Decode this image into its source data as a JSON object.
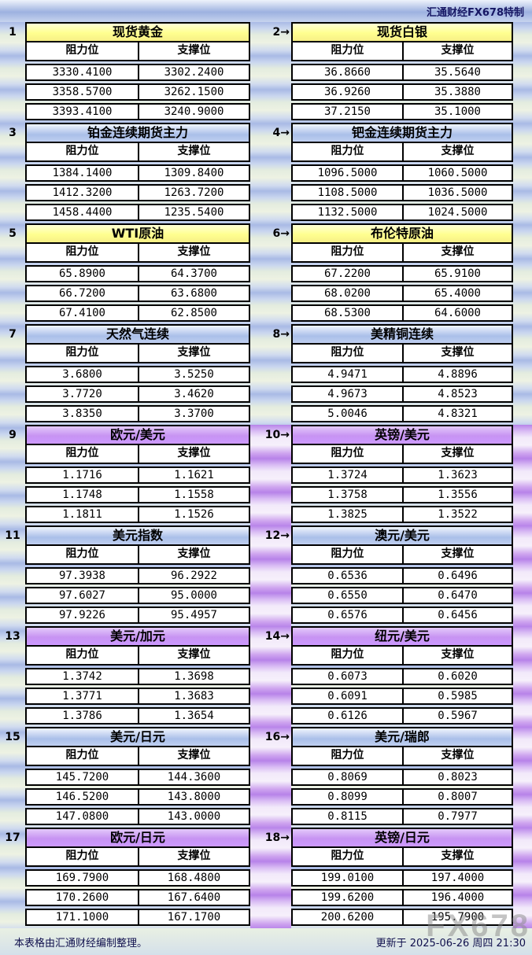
{
  "window": {
    "brand": "汇通财经FX678特制"
  },
  "columns": {
    "resistance": "阻力位",
    "support": "支撑位"
  },
  "pairs": [
    {
      "left": {
        "num": "1",
        "title": "现货黄金",
        "theme": "yellow",
        "rows": [
          [
            "3330.4100",
            "3302.2400"
          ],
          [
            "3358.5700",
            "3262.1500"
          ],
          [
            "3393.4100",
            "3240.9000"
          ]
        ]
      },
      "right": {
        "num": "2→",
        "title": "现货白银",
        "theme": "yellow",
        "rows": [
          [
            "36.8660",
            "35.5640"
          ],
          [
            "36.9260",
            "35.3880"
          ],
          [
            "37.2150",
            "35.1000"
          ]
        ]
      }
    },
    {
      "left": {
        "num": "3",
        "title": "铂金连续期货主力",
        "theme": "blue",
        "rows": [
          [
            "1384.1400",
            "1309.8400"
          ],
          [
            "1412.3200",
            "1263.7200"
          ],
          [
            "1458.4400",
            "1235.5400"
          ]
        ]
      },
      "right": {
        "num": "4→",
        "title": "钯金连续期货主力",
        "theme": "blue",
        "rows": [
          [
            "1096.5000",
            "1060.5000"
          ],
          [
            "1108.5000",
            "1036.5000"
          ],
          [
            "1132.5000",
            "1024.5000"
          ]
        ]
      }
    },
    {
      "left": {
        "num": "5",
        "title": "WTI原油",
        "theme": "yellow",
        "rows": [
          [
            "65.8900",
            "64.3700"
          ],
          [
            "66.7200",
            "63.6800"
          ],
          [
            "67.4100",
            "62.8500"
          ]
        ]
      },
      "right": {
        "num": "6→",
        "title": "布伦特原油",
        "theme": "yellow",
        "rows": [
          [
            "67.2200",
            "65.9100"
          ],
          [
            "68.0200",
            "65.4000"
          ],
          [
            "68.5300",
            "64.6000"
          ]
        ]
      }
    },
    {
      "left": {
        "num": "7",
        "title": "天然气连续",
        "theme": "blue",
        "rows": [
          [
            "3.6800",
            "3.5250"
          ],
          [
            "3.7720",
            "3.4620"
          ],
          [
            "3.8350",
            "3.3700"
          ]
        ]
      },
      "right": {
        "num": "8→",
        "title": "美精铜连续",
        "theme": "blue",
        "rows": [
          [
            "4.9471",
            "4.8896"
          ],
          [
            "4.9673",
            "4.8523"
          ],
          [
            "5.0046",
            "4.8321"
          ]
        ]
      }
    },
    {
      "left": {
        "num": "9",
        "title": "欧元/美元",
        "theme": "purple",
        "rows": [
          [
            "1.1716",
            "1.1621"
          ],
          [
            "1.1748",
            "1.1558"
          ],
          [
            "1.1811",
            "1.1526"
          ]
        ]
      },
      "right": {
        "num": "10→",
        "title": "英镑/美元",
        "theme": "purple",
        "rows": [
          [
            "1.3724",
            "1.3623"
          ],
          [
            "1.3758",
            "1.3556"
          ],
          [
            "1.3825",
            "1.3522"
          ]
        ]
      }
    },
    {
      "left": {
        "num": "11",
        "title": "美元指数",
        "theme": "blue",
        "rows": [
          [
            "97.3938",
            "96.2922"
          ],
          [
            "97.6027",
            "95.0000"
          ],
          [
            "97.9226",
            "95.4957"
          ]
        ]
      },
      "right": {
        "num": "12→",
        "title": "澳元/美元",
        "theme": "blue",
        "rows": [
          [
            "0.6536",
            "0.6496"
          ],
          [
            "0.6550",
            "0.6470"
          ],
          [
            "0.6576",
            "0.6456"
          ]
        ]
      }
    },
    {
      "left": {
        "num": "13",
        "title": "美元/加元",
        "theme": "purple",
        "rows": [
          [
            "1.3742",
            "1.3698"
          ],
          [
            "1.3771",
            "1.3683"
          ],
          [
            "1.3786",
            "1.3654"
          ]
        ]
      },
      "right": {
        "num": "14→",
        "title": "纽元/美元",
        "theme": "purple",
        "rows": [
          [
            "0.6073",
            "0.6020"
          ],
          [
            "0.6091",
            "0.5985"
          ],
          [
            "0.6126",
            "0.5967"
          ]
        ]
      }
    },
    {
      "left": {
        "num": "15",
        "title": "美元/日元",
        "theme": "blue",
        "rows": [
          [
            "145.7200",
            "144.3600"
          ],
          [
            "146.5200",
            "143.8000"
          ],
          [
            "147.0800",
            "143.0000"
          ]
        ]
      },
      "right": {
        "num": "16→",
        "title": "美元/瑞郎",
        "theme": "blue",
        "rows": [
          [
            "0.8069",
            "0.8023"
          ],
          [
            "0.8099",
            "0.8007"
          ],
          [
            "0.8115",
            "0.7977"
          ]
        ]
      }
    },
    {
      "left": {
        "num": "17",
        "title": "欧元/日元",
        "theme": "purple",
        "rows": [
          [
            "169.7900",
            "168.4800"
          ],
          [
            "170.2600",
            "167.6400"
          ],
          [
            "171.1000",
            "167.1700"
          ]
        ]
      },
      "right": {
        "num": "18→",
        "title": "英镑/日元",
        "theme": "purple",
        "rows": [
          [
            "199.0100",
            "197.4000"
          ],
          [
            "199.6200",
            "196.4000"
          ],
          [
            "200.6200",
            "195.7900"
          ]
        ]
      }
    }
  ],
  "footer": {
    "note": "本表格由汇通财经编制整理。",
    "updated": "更新于 2025-06-26 周四 21:30",
    "watermark": "FX678"
  },
  "colors": {
    "yellow_header": "#ffff99",
    "blue_header": "#aabfe9",
    "purple_header": "#cc99ff",
    "stripe_blue": "#a9bae5",
    "stripe_green": "#e3ecdf",
    "stripe_purple": "#b783e9"
  }
}
